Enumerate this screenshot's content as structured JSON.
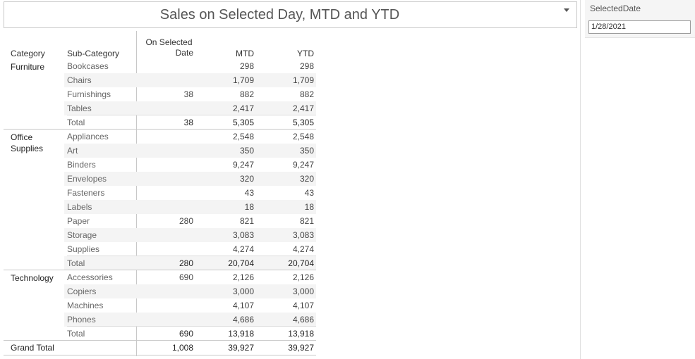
{
  "title": "Sales on Selected Day, MTD and YTD",
  "parameter": {
    "label": "SelectedDate",
    "value": "1/28/2021"
  },
  "columns": {
    "category": "Category",
    "subcategory": "Sub-Category",
    "selected_line1": "On Selected",
    "selected_line2": "Date",
    "mtd": "MTD",
    "ytd": "YTD"
  },
  "groups": [
    {
      "category_lines": [
        "Furniture"
      ],
      "rows": [
        {
          "sub": "Bookcases",
          "sel": "",
          "mtd": "298",
          "ytd": "298"
        },
        {
          "sub": "Chairs",
          "sel": "",
          "mtd": "1,709",
          "ytd": "1,709"
        },
        {
          "sub": "Furnishings",
          "sel": "38",
          "mtd": "882",
          "ytd": "882"
        },
        {
          "sub": "Tables",
          "sel": "",
          "mtd": "2,417",
          "ytd": "2,417"
        }
      ],
      "total": {
        "label": "Total",
        "sel": "38",
        "mtd": "5,305",
        "ytd": "5,305"
      }
    },
    {
      "category_lines": [
        "Office",
        "Supplies"
      ],
      "rows": [
        {
          "sub": "Appliances",
          "sel": "",
          "mtd": "2,548",
          "ytd": "2,548"
        },
        {
          "sub": "Art",
          "sel": "",
          "mtd": "350",
          "ytd": "350"
        },
        {
          "sub": "Binders",
          "sel": "",
          "mtd": "9,247",
          "ytd": "9,247"
        },
        {
          "sub": "Envelopes",
          "sel": "",
          "mtd": "320",
          "ytd": "320"
        },
        {
          "sub": "Fasteners",
          "sel": "",
          "mtd": "43",
          "ytd": "43"
        },
        {
          "sub": "Labels",
          "sel": "",
          "mtd": "18",
          "ytd": "18"
        },
        {
          "sub": "Paper",
          "sel": "280",
          "mtd": "821",
          "ytd": "821"
        },
        {
          "sub": "Storage",
          "sel": "",
          "mtd": "3,083",
          "ytd": "3,083"
        },
        {
          "sub": "Supplies",
          "sel": "",
          "mtd": "4,274",
          "ytd": "4,274"
        }
      ],
      "total": {
        "label": "Total",
        "sel": "280",
        "mtd": "20,704",
        "ytd": "20,704"
      }
    },
    {
      "category_lines": [
        "Technology"
      ],
      "rows": [
        {
          "sub": "Accessories",
          "sel": "690",
          "mtd": "2,126",
          "ytd": "2,126"
        },
        {
          "sub": "Copiers",
          "sel": "",
          "mtd": "3,000",
          "ytd": "3,000"
        },
        {
          "sub": "Machines",
          "sel": "",
          "mtd": "4,107",
          "ytd": "4,107"
        },
        {
          "sub": "Phones",
          "sel": "",
          "mtd": "4,686",
          "ytd": "4,686"
        }
      ],
      "total": {
        "label": "Total",
        "sel": "690",
        "mtd": "13,918",
        "ytd": "13,918"
      }
    }
  ],
  "grand_total": {
    "label": "Grand Total",
    "sel": "1,008",
    "mtd": "39,927",
    "ytd": "39,927"
  }
}
